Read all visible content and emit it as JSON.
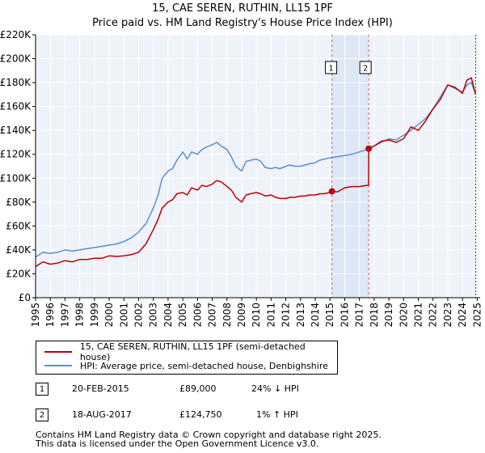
{
  "chart_data": {
    "type": "line",
    "title": "15, CAE SEREN, RUTHIN, LL15 1PF",
    "subtitle": "Price paid vs. HM Land Registry's House Price Index (HPI)",
    "ylim": [
      0,
      220000
    ],
    "xlim": [
      1995,
      2025.2
    ],
    "ytick_values": [
      0,
      20000,
      40000,
      60000,
      80000,
      100000,
      120000,
      140000,
      160000,
      180000,
      200000,
      220000
    ],
    "ytick_labels": [
      "£0",
      "£20K",
      "£40K",
      "£60K",
      "£80K",
      "£100K",
      "£120K",
      "£140K",
      "£160K",
      "£180K",
      "£200K",
      "£220K"
    ],
    "xtick_values": [
      1995,
      1996,
      1997,
      1998,
      1999,
      2000,
      2001,
      2002,
      2003,
      2004,
      2005,
      2006,
      2007,
      2008,
      2009,
      2010,
      2011,
      2012,
      2013,
      2014,
      2015,
      2016,
      2017,
      2018,
      2019,
      2020,
      2021,
      2022,
      2023,
      2024,
      2025
    ],
    "xtick_labels": [
      "1995",
      "1996",
      "1997",
      "1998",
      "1999",
      "2000",
      "2001",
      "2002",
      "2003",
      "2004",
      "2005",
      "2006",
      "2007",
      "2008",
      "2009",
      "2010",
      "2011",
      "2012",
      "2013",
      "2014",
      "2015",
      "2016",
      "2017",
      "2018",
      "2019",
      "2020",
      "2021",
      "2022",
      "2023",
      "2024",
      "2025"
    ],
    "grid": true,
    "series": [
      {
        "name": "15, CAE SEREN, RUTHIN, LL15 1PF (semi-detached house)",
        "color": "#c00000",
        "x": [
          1995.0,
          1995.5,
          1996.0,
          1996.5,
          1997.0,
          1997.5,
          1998.0,
          1998.5,
          1999.0,
          1999.5,
          2000.0,
          2000.5,
          2001.0,
          2001.5,
          2002.0,
          2002.5,
          2003.0,
          2003.3,
          2003.6,
          2004.0,
          2004.3,
          2004.6,
          2005.0,
          2005.3,
          2005.6,
          2006.0,
          2006.3,
          2006.6,
          2007.0,
          2007.3,
          2007.6,
          2008.0,
          2008.3,
          2008.6,
          2009.0,
          2009.3,
          2009.6,
          2010.0,
          2010.3,
          2010.6,
          2011.0,
          2011.3,
          2011.6,
          2012.0,
          2012.3,
          2012.6,
          2013.0,
          2013.3,
          2013.6,
          2014.0,
          2014.3,
          2014.6,
          2015.0,
          2015.13,
          2015.5,
          2016.0,
          2016.5,
          2017.0,
          2017.5,
          2017.62,
          2017.63,
          2018.0,
          2018.5,
          2019.0,
          2019.5,
          2020.0,
          2020.5,
          2021.0,
          2021.5,
          2022.0,
          2022.5,
          2023.0,
          2023.5,
          2024.0,
          2024.3,
          2024.6,
          2024.9
        ],
        "values": [
          26000,
          30000,
          28000,
          29000,
          31000,
          30000,
          32000,
          32000,
          33000,
          33000,
          35000,
          34500,
          35000,
          36000,
          38000,
          45000,
          57000,
          65000,
          75000,
          80000,
          82000,
          87000,
          88000,
          86000,
          92000,
          90000,
          94000,
          93000,
          95000,
          98000,
          97000,
          93000,
          90000,
          84000,
          80000,
          86000,
          87000,
          88000,
          87000,
          85000,
          86000,
          84000,
          83000,
          83000,
          84000,
          84000,
          85000,
          85000,
          86000,
          86000,
          87000,
          87000,
          88000,
          89000,
          88500,
          92000,
          93000,
          93000,
          94000,
          94000,
          124750,
          127000,
          131000,
          132000,
          130000,
          133000,
          143000,
          140000,
          148000,
          158000,
          166000,
          178000,
          176000,
          171000,
          182000,
          184000,
          170000
        ]
      },
      {
        "name": "HPI: Average price, semi-detached house, Denbighshire",
        "color": "#5b8fd0",
        "x": [
          1995.0,
          1995.5,
          1996.0,
          1996.5,
          1997.0,
          1997.5,
          1998.0,
          1998.5,
          1999.0,
          1999.5,
          2000.0,
          2000.5,
          2001.0,
          2001.5,
          2002.0,
          2002.5,
          2003.0,
          2003.3,
          2003.6,
          2004.0,
          2004.3,
          2004.6,
          2005.0,
          2005.3,
          2005.6,
          2006.0,
          2006.3,
          2006.6,
          2007.0,
          2007.3,
          2007.6,
          2008.0,
          2008.3,
          2008.6,
          2009.0,
          2009.3,
          2009.6,
          2010.0,
          2010.3,
          2010.6,
          2011.0,
          2011.3,
          2011.6,
          2012.0,
          2012.3,
          2012.6,
          2013.0,
          2013.3,
          2013.6,
          2014.0,
          2014.3,
          2014.6,
          2015.0,
          2015.5,
          2016.0,
          2016.5,
          2017.0,
          2017.5,
          2018.0,
          2018.5,
          2019.0,
          2019.5,
          2020.0,
          2020.5,
          2021.0,
          2021.5,
          2022.0,
          2022.5,
          2023.0,
          2023.5,
          2024.0,
          2024.3,
          2024.6,
          2024.9
        ],
        "values": [
          34000,
          38000,
          37000,
          38000,
          40000,
          39000,
          40000,
          41000,
          42000,
          43000,
          44000,
          45000,
          47000,
          50000,
          55000,
          62000,
          75000,
          85000,
          100000,
          106000,
          108000,
          115000,
          122000,
          116000,
          122000,
          120000,
          124000,
          126000,
          128000,
          130000,
          127000,
          124000,
          118000,
          110000,
          106000,
          114000,
          115000,
          116000,
          114000,
          109000,
          108000,
          109000,
          108000,
          110000,
          111000,
          110000,
          110000,
          111000,
          112000,
          113000,
          115000,
          116000,
          117000,
          118000,
          119000,
          120000,
          122000,
          124000,
          127000,
          130000,
          133000,
          132000,
          136000,
          140000,
          145000,
          150000,
          158000,
          168000,
          178000,
          175000,
          172000,
          178000,
          180000,
          170000
        ]
      }
    ],
    "annotations": [
      {
        "label": "1",
        "x": 2015.13,
        "value": 89000
      },
      {
        "label": "2",
        "x": 2017.63,
        "value": 124750
      }
    ],
    "shaded_region": {
      "from": 2015.13,
      "to": 2017.63
    }
  },
  "legend": {
    "items": [
      {
        "label": "15, CAE SEREN, RUTHIN, LL15 1PF (semi-detached house)",
        "color": "#c00000"
      },
      {
        "label": "HPI: Average price, semi-detached house, Denbighshire",
        "color": "#5b8fd0"
      }
    ]
  },
  "transactions": [
    {
      "num": "1",
      "date": "20-FEB-2015",
      "price": "£89,000",
      "hpi": "24% ↓ HPI"
    },
    {
      "num": "2",
      "date": "18-AUG-2017",
      "price": "£124,750",
      "hpi": "1% ↑ HPI"
    }
  ],
  "footer": {
    "line1": "Contains HM Land Registry data © Crown copyright and database right 2025.",
    "line2": "This data is licensed under the Open Government Licence v3.0."
  }
}
